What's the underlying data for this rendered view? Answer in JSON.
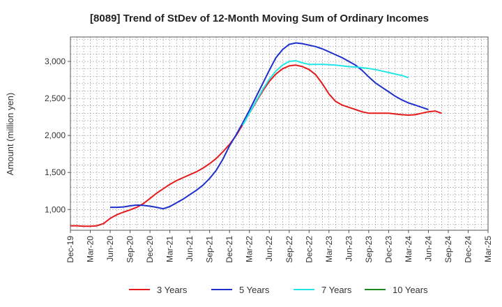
{
  "chart_data": {
    "type": "line",
    "title": "[8089]  Trend of StDev of 12-Month Moving Sum of Ordinary Incomes",
    "xlabel": "",
    "ylabel": "Amount (million yen)",
    "ylim": [
      720,
      3330
    ],
    "yticks": [
      1000,
      1500,
      2000,
      2500,
      3000
    ],
    "ytick_labels": [
      "1,000",
      "1,500",
      "2,000",
      "2,500",
      "3,000"
    ],
    "xtick_labels": [
      "Dec-19",
      "Mar-20",
      "Jun-20",
      "Sep-20",
      "Dec-20",
      "Mar-21",
      "Jun-21",
      "Sep-21",
      "Dec-21",
      "Mar-22",
      "Jun-22",
      "Sep-22",
      "Dec-22",
      "Mar-23",
      "Jun-23",
      "Sep-23",
      "Dec-23",
      "Mar-24",
      "Jun-24",
      "Sep-24",
      "Dec-24",
      "Mar-25"
    ],
    "grid": true,
    "legend_position": "bottom",
    "series": [
      {
        "name": "3 Years",
        "color": "#e41a1c",
        "start_index": 0,
        "values": [
          780,
          780,
          775,
          775,
          780,
          810,
          880,
          930,
          965,
          995,
          1030,
          1080,
          1150,
          1220,
          1280,
          1340,
          1390,
          1430,
          1470,
          1510,
          1560,
          1620,
          1690,
          1780,
          1880,
          2000,
          2150,
          2300,
          2450,
          2600,
          2730,
          2830,
          2900,
          2940,
          2950,
          2930,
          2890,
          2820,
          2700,
          2560,
          2460,
          2410,
          2380,
          2350,
          2320,
          2300,
          2300,
          2300,
          2300,
          2290,
          2280,
          2275,
          2280,
          2300,
          2320,
          2330,
          2300
        ]
      },
      {
        "name": "5 Years",
        "color": "#1f2fcc",
        "start_index": 6,
        "values": [
          1030,
          1030,
          1035,
          1050,
          1060,
          1055,
          1045,
          1030,
          1010,
          1040,
          1090,
          1140,
          1200,
          1260,
          1330,
          1420,
          1530,
          1680,
          1860,
          2010,
          2170,
          2340,
          2520,
          2700,
          2880,
          3050,
          3160,
          3230,
          3250,
          3240,
          3220,
          3200,
          3170,
          3130,
          3090,
          3050,
          3000,
          2950,
          2880,
          2790,
          2710,
          2650,
          2590,
          2530,
          2480,
          2440,
          2410,
          2380,
          2350
        ]
      },
      {
        "name": "7 Years",
        "color": "#22e6e6",
        "start_index": 26,
        "values": [
          2140,
          2300,
          2460,
          2620,
          2760,
          2870,
          2950,
          3000,
          3010,
          2980,
          2960,
          2960,
          2960,
          2955,
          2950,
          2940,
          2930,
          2925,
          2915,
          2905,
          2890,
          2870,
          2850,
          2830,
          2810,
          2780
        ]
      },
      {
        "name": "10 Years",
        "color": "#1a8a1a",
        "start_index": 0,
        "values": []
      }
    ]
  }
}
